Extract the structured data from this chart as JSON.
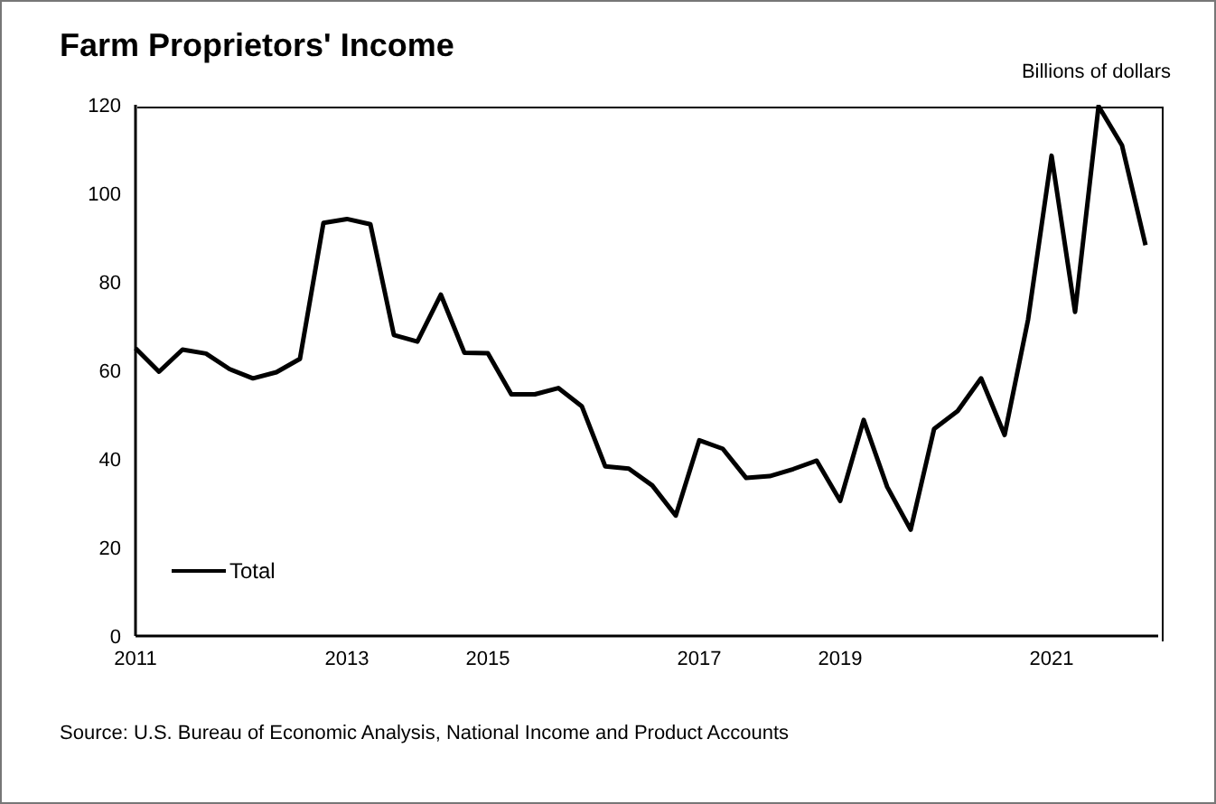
{
  "chart_data": {
    "type": "line",
    "title": "Farm Proprietors' Income",
    "ylabel": "Billions of dollars",
    "annotations": [
      "Source: U.S. Bureau of Economic Analysis, National Income and Product Accounts"
    ],
    "categories": [
      "2011",
      null,
      null,
      null,
      null,
      null,
      null,
      null,
      null,
      "2013",
      null,
      null,
      null,
      null,
      null,
      "2015",
      null,
      null,
      null,
      null,
      null,
      null,
      null,
      null,
      "2017",
      null,
      null,
      null,
      null,
      null,
      "2019",
      null,
      null,
      null,
      null,
      null,
      null,
      null,
      null,
      "2021",
      null,
      null,
      null,
      null
    ],
    "series": [
      {
        "name": "Total",
        "color": "#000000",
        "values": [
          65,
          59.7,
          64.7,
          63.8,
          60.3,
          58.2,
          59.6,
          62.6,
          93.3,
          94.2,
          93,
          68,
          66.5,
          77.1,
          64,
          63.9,
          54.6,
          54.6,
          56,
          51.9,
          38.3,
          37.8,
          34,
          27.2,
          44.2,
          42.3,
          35.7,
          36.1,
          37.7,
          39.6,
          30.5,
          48.8,
          33.7,
          24,
          46.8,
          50.8,
          58.2,
          45.4,
          71.5,
          108.5,
          73.2,
          119.7,
          110.8,
          88.3
        ]
      }
    ],
    "ylim": [
      0,
      120
    ],
    "yticks": [
      0,
      20,
      40,
      60,
      80,
      100,
      120
    ],
    "grid": false,
    "legend": "bottom left"
  }
}
